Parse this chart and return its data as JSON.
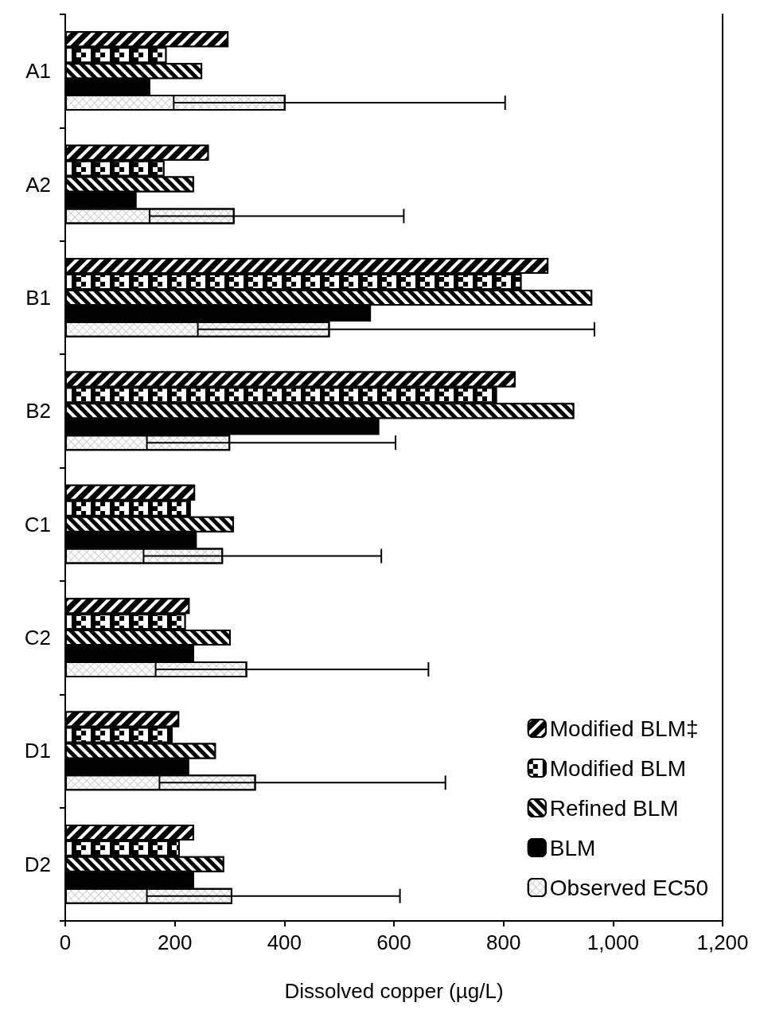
{
  "chart_data": {
    "type": "bar",
    "orientation": "horizontal",
    "xlabel": "Dissolved copper (µg/L)",
    "categories": [
      "A1",
      "A2",
      "B1",
      "B2",
      "C1",
      "C2",
      "D1",
      "D2"
    ],
    "series": [
      {
        "name": "Modified BLM‡",
        "color": "#000000",
        "values": [
          298,
          262,
          882,
          822,
          237,
          227,
          208,
          235
        ]
      },
      {
        "name": "Modified BLM",
        "color": "#000000",
        "values": [
          185,
          181,
          833,
          788,
          229,
          220,
          196,
          209
        ]
      },
      {
        "name": "Refined BLM",
        "color": "#000000",
        "values": [
          250,
          235,
          962,
          929,
          308,
          302,
          275,
          290
        ]
      },
      {
        "name": "BLM",
        "color": "#000000",
        "values": [
          155,
          130,
          558,
          573,
          240,
          235,
          226,
          235
        ]
      },
      {
        "name": "Observed EC50",
        "color": "#ffffff",
        "values": [
          402,
          309,
          483,
          301,
          288,
          332,
          348,
          305
        ],
        "errors": [
          [
            198,
            803
          ],
          [
            154,
            618
          ],
          [
            242,
            966
          ],
          [
            149,
            603
          ],
          [
            143,
            577
          ],
          [
            165,
            663
          ],
          [
            172,
            694
          ],
          [
            149,
            611
          ]
        ]
      }
    ],
    "xlim": [
      0,
      1200
    ],
    "xticks": [
      {
        "value": 0,
        "label": "0"
      },
      {
        "value": 200,
        "label": "200"
      },
      {
        "value": 400,
        "label": "400"
      },
      {
        "value": 600,
        "label": "600"
      },
      {
        "value": 800,
        "label": "800"
      },
      {
        "value": 1000,
        "label": "1,000"
      },
      {
        "value": 1200,
        "label": "1,200"
      }
    ],
    "grid": false,
    "legend": "bottom right"
  }
}
